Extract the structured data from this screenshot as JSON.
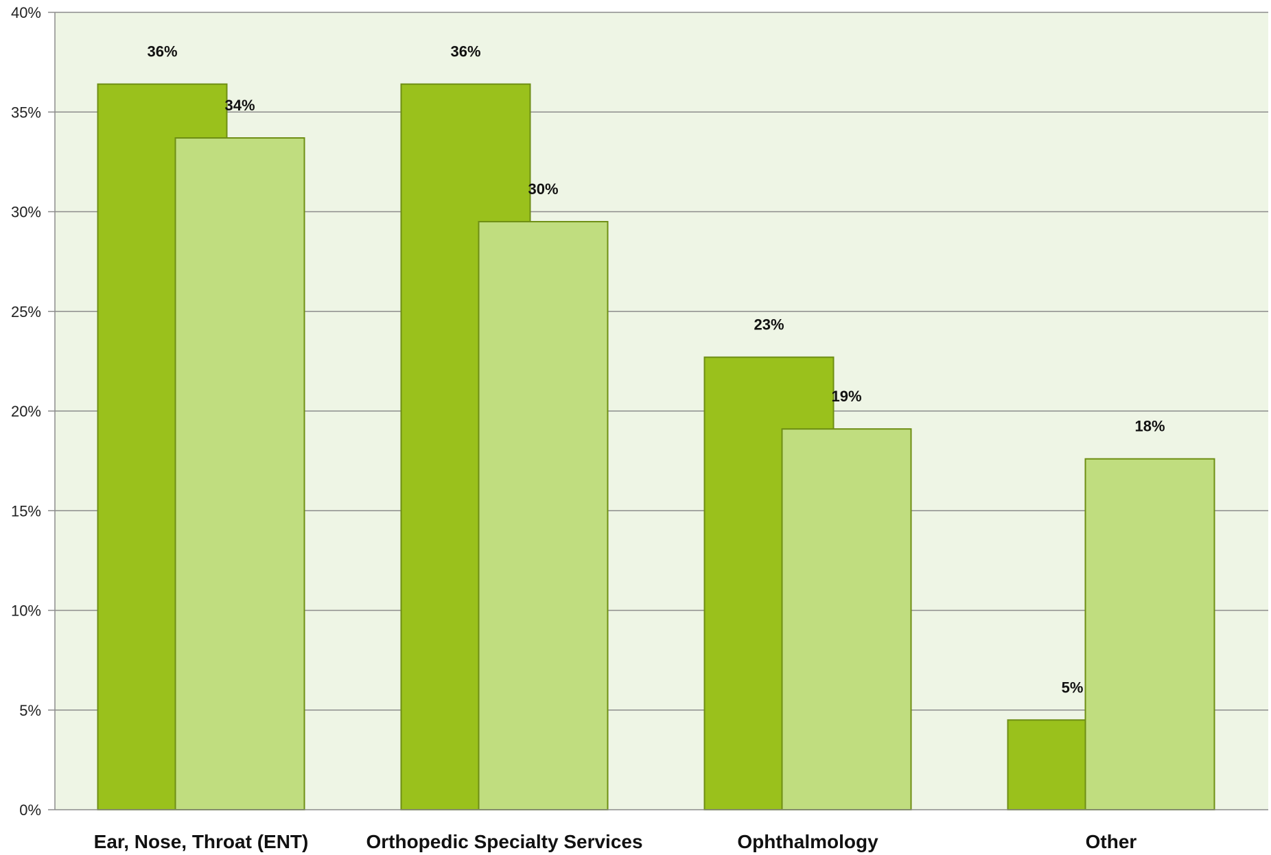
{
  "chart_data": {
    "type": "bar",
    "categories": [
      "Ear, Nose, Throat (ENT)",
      "Orthopedic Specialty Services",
      "Ophthalmology",
      "Other"
    ],
    "series": [
      {
        "values": [
          36.4,
          36.4,
          22.7,
          4.5
        ],
        "labels": [
          "36%",
          "36%",
          "23%",
          "5%"
        ],
        "color": "#9AC11C",
        "stroke": "#6E8E14"
      },
      {
        "values": [
          33.7,
          29.5,
          19.1,
          17.6
        ],
        "labels": [
          "34%",
          "30%",
          "19%",
          "18%"
        ],
        "color": "#C0DD7F",
        "stroke": "#6E8E14"
      }
    ],
    "ylim": [
      0,
      40
    ],
    "yticks": [
      0,
      5,
      10,
      15,
      20,
      25,
      30,
      35,
      40
    ],
    "ytick_labels": [
      "0%",
      "5%",
      "10%",
      "15%",
      "20%",
      "25%",
      "30%",
      "35%",
      "40%"
    ],
    "grid": true,
    "plot_background": "#EEF5E5",
    "gridline_color": "#8C8C8C"
  }
}
